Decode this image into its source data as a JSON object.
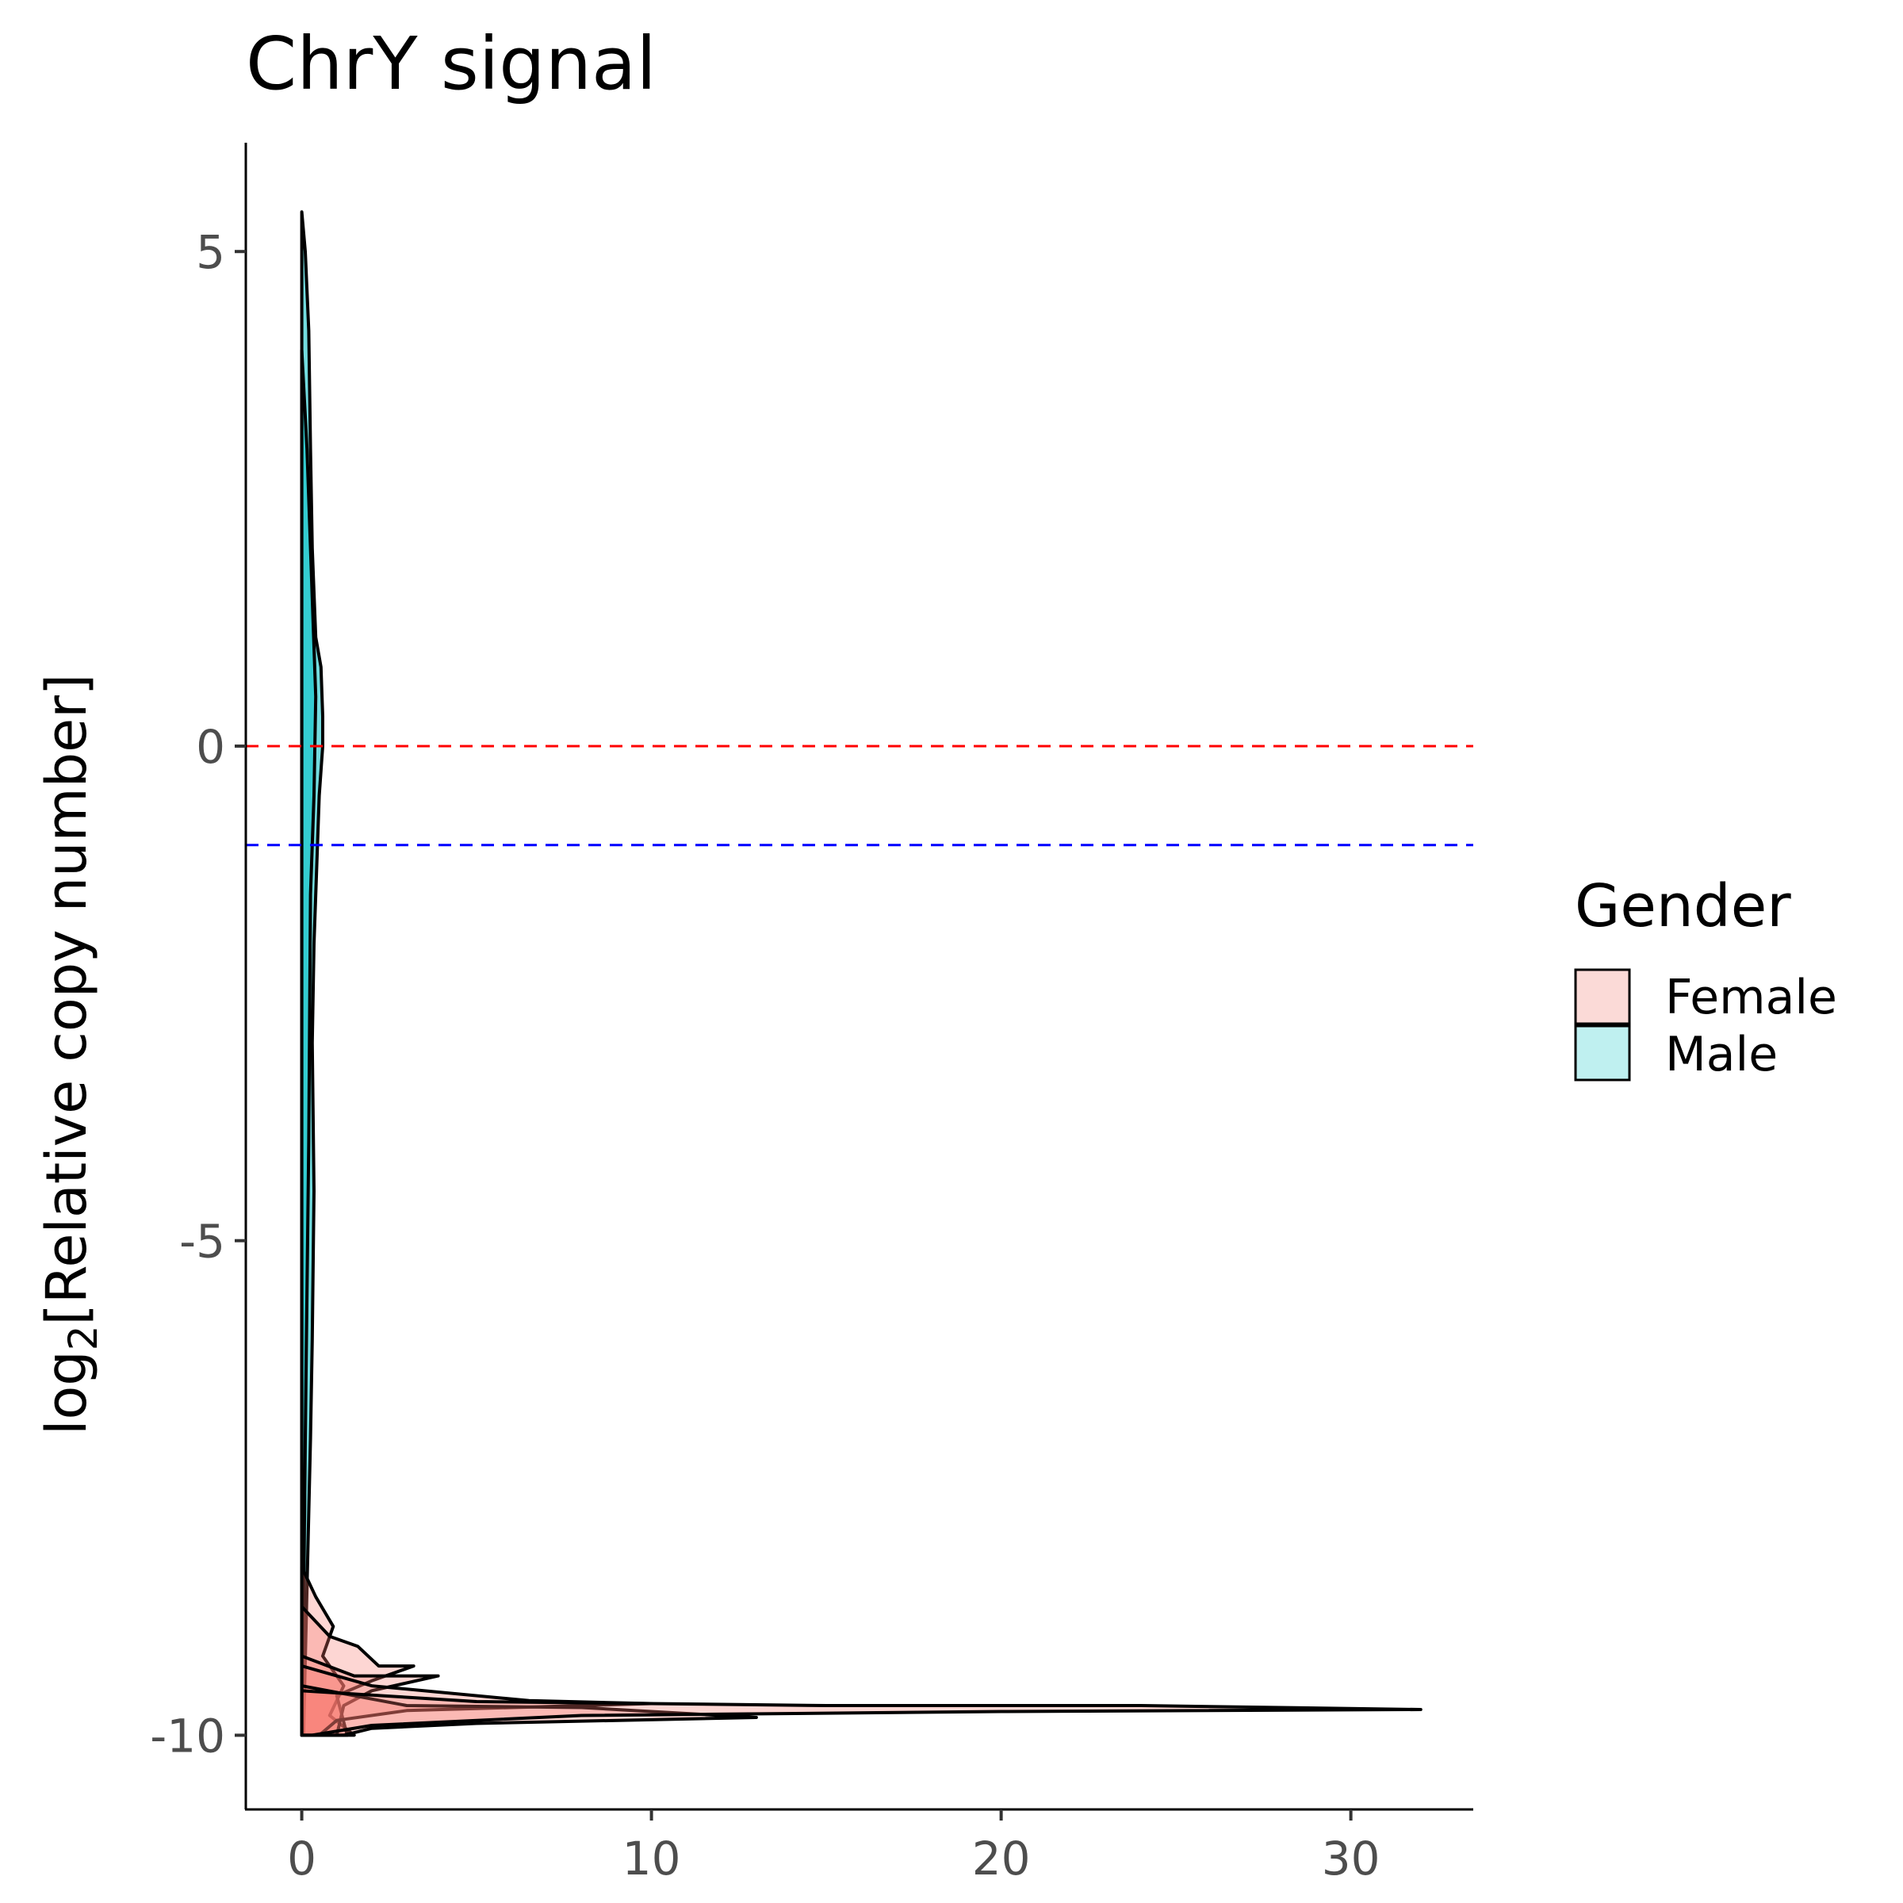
{
  "chart_data": {
    "type": "area",
    "title": "ChrY signal",
    "xlabel": "",
    "ylabel_main": "log",
    "ylabel_sub": "2",
    "ylabel_rest": "[Relative copy number]",
    "xlim": [
      -1.6,
      33.5
    ],
    "ylim": [
      -10.75,
      6.1
    ],
    "x_ticks": [
      0,
      10,
      20,
      30
    ],
    "y_ticks": [
      5,
      0,
      -5,
      -10
    ],
    "grid": false,
    "legend": {
      "title": "Gender",
      "position": "right",
      "entries": [
        {
          "label": "Female",
          "color": "#F8766D",
          "swatch": "#fbdad7"
        },
        {
          "label": "Male",
          "color": "#00BFC4",
          "swatch": "#bff0f0"
        }
      ]
    },
    "reference_lines": [
      {
        "y": 0,
        "color": "#ff0000",
        "style": "dashed"
      },
      {
        "y": -1,
        "color": "#0000ff",
        "style": "dashed"
      }
    ],
    "baseline": -10,
    "series": [
      {
        "name": "Male",
        "color": "#00BFC4",
        "points": [
          [
            0.0,
            5.4
          ],
          [
            0.1,
            5.0
          ],
          [
            0.2,
            4.2
          ],
          [
            0.25,
            3.0
          ],
          [
            0.3,
            2.0
          ],
          [
            0.4,
            1.1
          ],
          [
            0.55,
            0.8
          ],
          [
            0.6,
            0.3
          ],
          [
            0.6,
            0.0
          ],
          [
            0.5,
            -0.5
          ],
          [
            0.45,
            -1.0
          ],
          [
            0.35,
            -2.0
          ],
          [
            0.3,
            -3.0
          ],
          [
            0.35,
            -4.5
          ],
          [
            0.3,
            -6.0
          ],
          [
            0.25,
            -7.0
          ],
          [
            0.15,
            -8.5
          ],
          [
            0.05,
            -10.0
          ]
        ]
      },
      {
        "name": "Male",
        "color": "#00BFC4",
        "points": [
          [
            0.0,
            4.0
          ],
          [
            0.15,
            3.0
          ],
          [
            0.3,
            1.5
          ],
          [
            0.4,
            0.5
          ],
          [
            0.35,
            -0.5
          ],
          [
            0.25,
            -1.5
          ],
          [
            0.2,
            -4.0
          ],
          [
            0.1,
            -7.0
          ],
          [
            0.02,
            -10.0
          ]
        ]
      },
      {
        "name": "Female",
        "color": "#F8766D",
        "points": [
          [
            0.0,
            -8.3
          ],
          [
            0.4,
            -8.6
          ],
          [
            0.9,
            -8.9
          ],
          [
            0.6,
            -9.2
          ],
          [
            1.2,
            -9.5
          ],
          [
            0.8,
            -9.8
          ],
          [
            1.5,
            -10.0
          ]
        ]
      },
      {
        "name": "Female",
        "color": "#F8766D",
        "points": [
          [
            0.0,
            -8.7
          ],
          [
            0.8,
            -9.0
          ],
          [
            1.6,
            -9.1
          ],
          [
            2.2,
            -9.3
          ],
          [
            3.2,
            -9.3
          ],
          [
            2.0,
            -9.45
          ],
          [
            1.0,
            -9.6
          ],
          [
            1.3,
            -10.0
          ]
        ]
      },
      {
        "name": "Female",
        "color": "#F8766D",
        "points": [
          [
            0.0,
            -9.2
          ],
          [
            1.5,
            -9.4
          ],
          [
            3.9,
            -9.4
          ],
          [
            2.0,
            -9.55
          ],
          [
            1.2,
            -9.7
          ],
          [
            1.0,
            -10.0
          ]
        ]
      },
      {
        "name": "Female",
        "color": "#F8766D",
        "points": [
          [
            0.0,
            -9.3
          ],
          [
            2.0,
            -9.5
          ],
          [
            6.5,
            -9.65
          ],
          [
            10.0,
            -9.68
          ],
          [
            3.0,
            -9.75
          ],
          [
            1.0,
            -9.85
          ],
          [
            0.5,
            -10.0
          ]
        ]
      },
      {
        "name": "Female",
        "color": "#F8766D",
        "points": [
          [
            0.0,
            -9.5
          ],
          [
            3.0,
            -9.7
          ],
          [
            8.0,
            -9.72
          ],
          [
            13.0,
            -9.82
          ],
          [
            5.0,
            -9.88
          ],
          [
            2.0,
            -9.93
          ],
          [
            1.2,
            -10.0
          ]
        ]
      },
      {
        "name": "Female",
        "color": "#F8766D",
        "points": [
          [
            0.0,
            -9.55
          ],
          [
            5.0,
            -9.66
          ],
          [
            15.0,
            -9.7
          ],
          [
            24.0,
            -9.7
          ],
          [
            28.0,
            -9.72
          ],
          [
            32.0,
            -9.74
          ],
          [
            20.0,
            -9.76
          ],
          [
            8.0,
            -9.8
          ],
          [
            2.0,
            -9.9
          ],
          [
            0.3,
            -10.0
          ]
        ]
      }
    ]
  }
}
